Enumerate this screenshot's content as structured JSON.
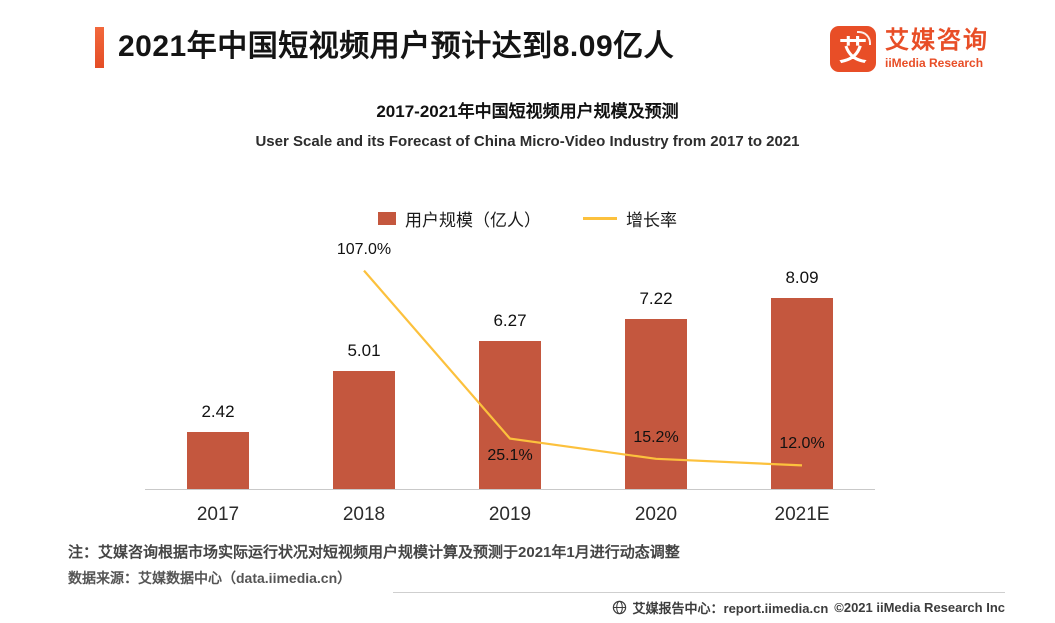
{
  "accent_color": "#e84e27",
  "header": {
    "title": "2021年中国短视频用户预计达到8.09亿人"
  },
  "logo": {
    "icon_char": "艾",
    "name_cn": "艾媒咨询",
    "name_en": "iiMedia Research"
  },
  "chart_data": {
    "type": "bar",
    "combo": "bar+line",
    "title_cn": "2017-2021年中国短视频用户规模及预测",
    "title_en": "User Scale and its Forecast of China Micro-Video Industry from 2017 to 2021",
    "categories": [
      "2017",
      "2018",
      "2019",
      "2020",
      "2021E"
    ],
    "series": [
      {
        "name": "用户规模（亿人）",
        "type": "bar",
        "color": "#c4573e",
        "values": [
          2.42,
          5.01,
          6.27,
          7.22,
          8.09
        ]
      },
      {
        "name": "增长率",
        "type": "line",
        "color": "#fcc13d",
        "values": [
          null,
          107.0,
          25.1,
          15.2,
          12.0
        ],
        "label_sides": [
          "",
          "above",
          "below",
          "above",
          "above"
        ]
      }
    ],
    "bar_axis_range": [
      0,
      10
    ],
    "line_axis_range": [
      0,
      117
    ],
    "legend_position": "top",
    "grid": false
  },
  "footer": {
    "note": "注：艾媒咨询根据市场实际运行状况对短视频用户规模计算及预测于2021年1月进行动态调整",
    "source": "数据来源：艾媒数据中心（data.iimedia.cn）",
    "report_center": "艾媒报告中心：report.iimedia.cn",
    "copyright": "©2021  iiMedia Research  Inc"
  }
}
